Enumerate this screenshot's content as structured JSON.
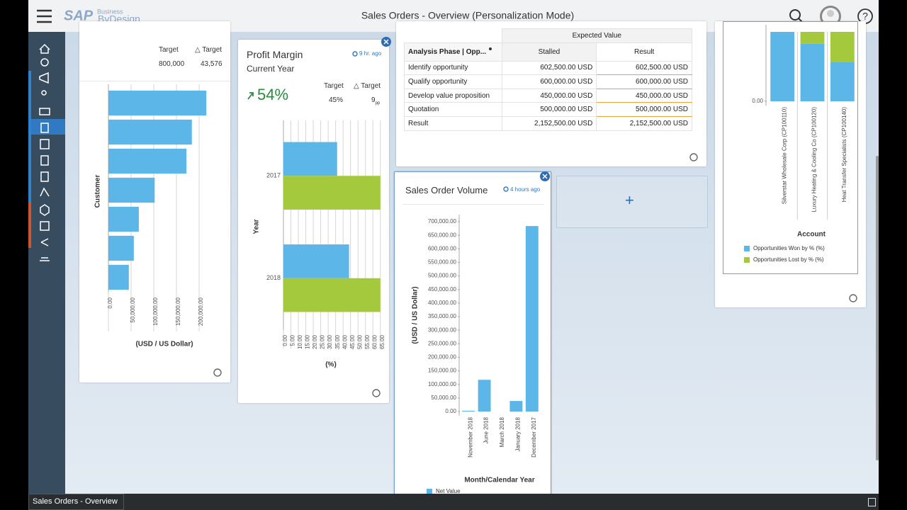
{
  "header": {
    "logo": "SAP",
    "logo_small": "Business",
    "logo_product": "ByDesign",
    "title": "Sales Orders - Overview (Personalization Mode)",
    "help": "?"
  },
  "footer": {
    "tab": "Sales Orders - Overview"
  },
  "customer_card": {
    "target_label": "Target",
    "target": "800,000",
    "delta_target_label": "△ Target",
    "delta_target": "43,576"
  },
  "profit_card": {
    "title": "Profit Margin",
    "subtitle": "Current Year",
    "refreshed": "9 hr. ago",
    "kpi": "54%",
    "target_label": "Target",
    "target": "45%",
    "delta_target_label": "△ Target",
    "delta_target": "9",
    "delta_unit": "pp"
  },
  "volume_card": {
    "title": "Sales Order Volume",
    "refreshed": "4 hours ago"
  },
  "add_tile": {
    "label": "+"
  },
  "table": {
    "group_header": "Expected Value",
    "columns": [
      "Analysis Phase | Opp...",
      "Stalled",
      "Result"
    ],
    "rows": [
      [
        "Identify opportunity",
        "602,500.00 USD",
        "602,500.00 USD"
      ],
      [
        "Qualify opportunity",
        "600,000.00 USD",
        "600,000.00 USD"
      ],
      [
        "Develop value proposition",
        "450,000.00 USD",
        "450,000.00 USD"
      ],
      [
        "Quotation",
        "500,000.00 USD",
        "500,000.00 USD"
      ],
      [
        "Result",
        "2,152,500.00 USD",
        "2,152,500.00 USD"
      ]
    ]
  },
  "chart_data": [
    {
      "type": "hbar",
      "categories": [
        null,
        null,
        null,
        null,
        null,
        null,
        null
      ],
      "values": [
        216000,
        184000,
        172000,
        102000,
        67000,
        56000,
        45000
      ],
      "color": "#5cb6e8",
      "xlim": [
        0,
        250000
      ],
      "xticks": [
        {
          "value": 0,
          "label": "0.00"
        },
        {
          "value": 50000,
          "label": "50,000.00"
        },
        {
          "value": 100000,
          "label": "100,000.00"
        },
        {
          "value": 150000,
          "label": "150,000.00"
        },
        {
          "value": 200000,
          "label": "200,000.00"
        }
      ],
      "ylabel": "Customer",
      "xlabel": "(USD / US Dollar)",
      "grid": true
    },
    {
      "type": "hbar",
      "categories": [
        "2017",
        "2018"
      ],
      "series": [
        {
          "color": "#5cb6e8",
          "values": [
            36,
            44
          ]
        },
        {
          "color": "#a4c93d",
          "values": [
            65,
            65
          ]
        }
      ],
      "xlim": [
        0,
        67
      ],
      "xticks": [
        {
          "value": 0,
          "label": "0.00"
        },
        {
          "value": 5,
          "label": "5.00"
        },
        {
          "value": 10,
          "label": "10.00"
        },
        {
          "value": 15,
          "label": "15.00"
        },
        {
          "value": 20,
          "label": "20.00"
        },
        {
          "value": 25,
          "label": "25.00"
        },
        {
          "value": 30,
          "label": "30.00"
        },
        {
          "value": 35,
          "label": "35.00"
        },
        {
          "value": 40,
          "label": "40.00"
        },
        {
          "value": 45,
          "label": "45.00"
        },
        {
          "value": 50,
          "label": "50.00"
        },
        {
          "value": 55,
          "label": "55.00"
        },
        {
          "value": 60,
          "label": "60.00"
        },
        {
          "value": 65,
          "label": "65.00"
        }
      ],
      "ylabel": "Year",
      "xlabel": "(%)",
      "grid": true
    },
    {
      "type": "bar",
      "categories": [
        "November 2018",
        "June 2018",
        "March 2018",
        "January 2018",
        "December 2017"
      ],
      "series": [
        {
          "name": "Net Value",
          "color": "#5cb6e8",
          "values": [
            3000,
            117000,
            0,
            39000,
            684000
          ]
        }
      ],
      "ylim": [
        0,
        700000
      ],
      "yticks": [
        {
          "value": 0,
          "label": "0.00"
        },
        {
          "value": 50000,
          "label": "50,000.00"
        },
        {
          "value": 100000,
          "label": "100,000.00"
        },
        {
          "value": 150000,
          "label": "150,000.00"
        },
        {
          "value": 200000,
          "label": "200,000.00"
        },
        {
          "value": 250000,
          "label": "250,000.00"
        },
        {
          "value": 300000,
          "label": "300,000.00"
        },
        {
          "value": 350000,
          "label": "350,000.00"
        },
        {
          "value": 400000,
          "label": "400,000.00"
        },
        {
          "value": 450000,
          "label": "450,000.00"
        },
        {
          "value": 500000,
          "label": "500,000.00"
        },
        {
          "value": 550000,
          "label": "550,000.00"
        },
        {
          "value": 600000,
          "label": "600,000.00"
        },
        {
          "value": 650000,
          "label": "650,000.00"
        },
        {
          "value": 700000,
          "label": "700,000.00"
        }
      ],
      "xlabel": "Month/Calendar Year",
      "ylabel": "(USD / US Dollar)"
    },
    {
      "type": "stacked_bar",
      "categories": [
        "Silverstar Wholesale Corp (CP100110)",
        "Luxury Heating & Cooling Co (CP100120)",
        "Heat Transfer Specialists (CP100140)"
      ],
      "series": [
        {
          "name": "Opportunities Won by % (%)",
          "color": "#5cb6e8",
          "values": [
            100,
            83,
            57
          ]
        },
        {
          "name": "Opportunities Lost by % (%)",
          "color": "#a4c93d",
          "values": [
            0,
            17,
            43
          ]
        }
      ],
      "ylim": [
        0,
        100
      ],
      "yticks": [
        {
          "value": 0,
          "label": "0.00"
        }
      ],
      "xlabel": "Account"
    }
  ]
}
